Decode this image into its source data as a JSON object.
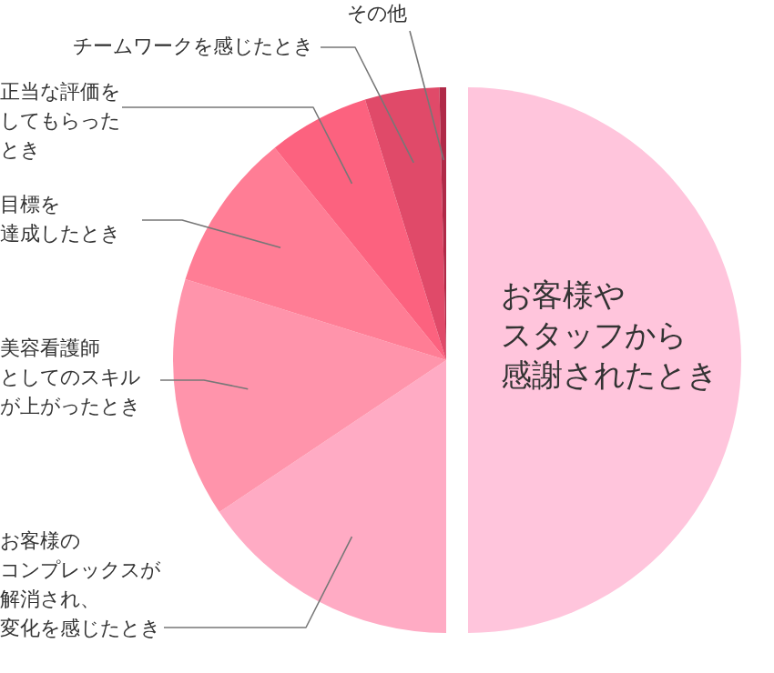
{
  "chart_data": {
    "type": "pie",
    "categories": [
      "お客様やスタッフから感謝されたとき",
      "お客様のコンプレックスが解消され、変化を感じたとき",
      "美容看護師としてのスキルが上がったとき",
      "目標を達成したとき",
      "正当な評価をしてもらったとき",
      "チームワークを感じたとき",
      "その他"
    ],
    "values": [
      50,
      15.6,
      14.2,
      9.4,
      6.0,
      4.4,
      0.4
    ],
    "colors": [
      "#ffc5dc",
      "#ffabc4",
      "#ff94ab",
      "#ff7d95",
      "#fc627f",
      "#e04a69",
      "#b02a48"
    ]
  }
}
